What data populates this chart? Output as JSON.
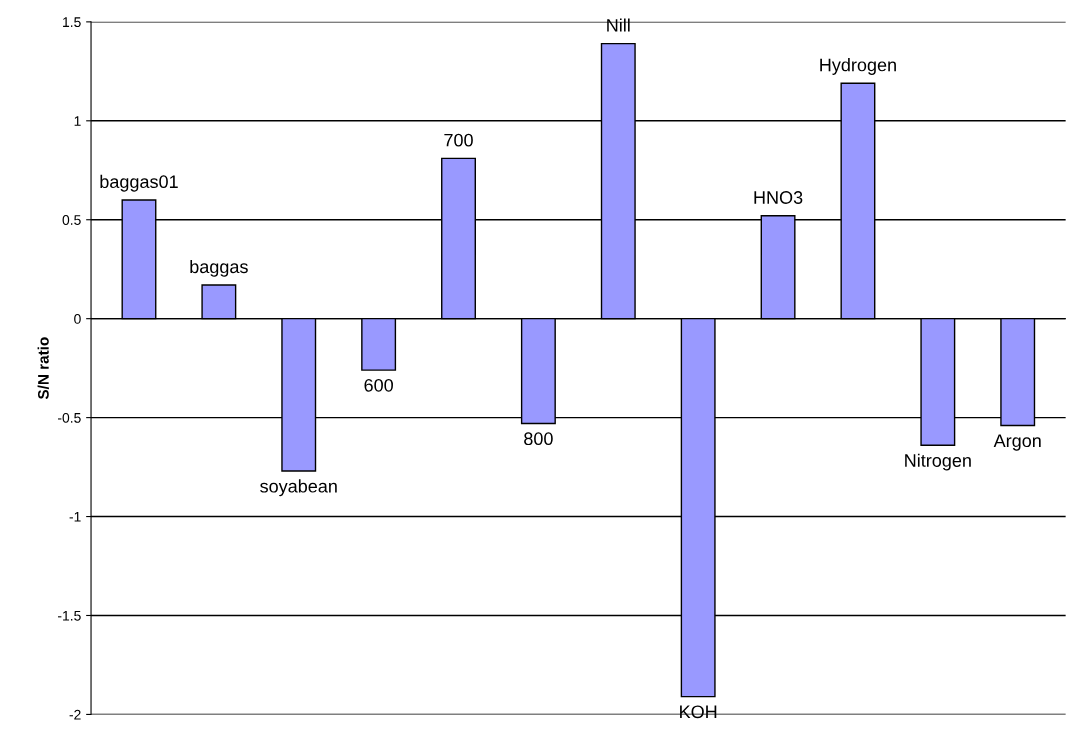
{
  "chart_data": {
    "type": "bar",
    "ylabel": "S/N ratio",
    "categories": [
      "baggas01",
      "baggas",
      "soyabean",
      "600",
      "700",
      "800",
      "Nill",
      "KOH",
      "HNO3",
      "Hydrogen",
      "Nitrogen",
      "Argon"
    ],
    "values": [
      0.6,
      0.17,
      -0.77,
      -0.26,
      0.81,
      -0.53,
      1.39,
      -1.91,
      0.52,
      1.19,
      -0.64,
      -0.54
    ],
    "color": "#9999ff",
    "ylim": [
      -2,
      1.5
    ],
    "yticks": [
      -2,
      -1.5,
      -1,
      -0.5,
      0,
      0.5,
      1,
      1.5
    ],
    "grid": "y"
  }
}
